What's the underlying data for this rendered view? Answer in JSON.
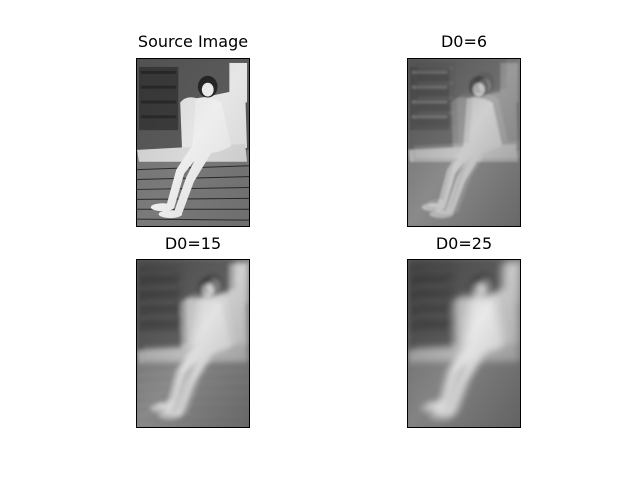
{
  "chart_data": [
    {
      "type": "image",
      "title": "Source Image",
      "style": "sharp"
    },
    {
      "type": "image",
      "title": "D0=6",
      "style": "highpass"
    },
    {
      "type": "image",
      "title": "D0=15",
      "style": "blur-ghost"
    },
    {
      "type": "image",
      "title": "D0=25",
      "style": "blur-ghost-strong"
    }
  ]
}
